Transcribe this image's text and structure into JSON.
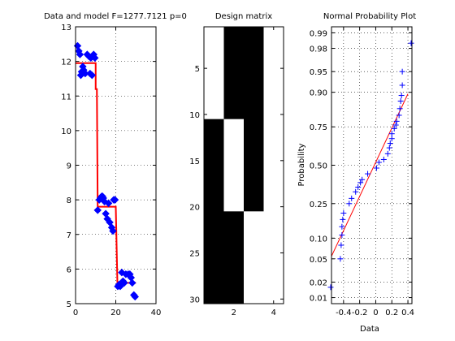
{
  "chart_data": [
    {
      "type": "scatter",
      "title": "Data and model F=1277.7121 p=0",
      "xlabel": "",
      "ylabel": "",
      "xlim": [
        0,
        40
      ],
      "ylim": [
        5,
        13
      ],
      "x_ticks": [
        0,
        20,
        40
      ],
      "y_ticks": [
        5,
        6,
        7,
        8,
        9,
        10,
        11,
        12,
        13
      ],
      "grid": true,
      "colors": {
        "data": "#0000ff",
        "model": "#ff0000"
      },
      "series": [
        {
          "kind": "markers",
          "marker": "filled-diamond",
          "points": [
            [
              1,
              12.45
            ],
            [
              1.6,
              12.3
            ],
            [
              2.2,
              12.2
            ],
            [
              2.6,
              11.6
            ],
            [
              3,
              11.7
            ],
            [
              3.6,
              11.85
            ],
            [
              4,
              11.75
            ],
            [
              4.8,
              11.65
            ],
            [
              5.8,
              12.2
            ],
            [
              6.6,
              12.15
            ],
            [
              7.2,
              11.65
            ],
            [
              7.6,
              12.1
            ],
            [
              8.2,
              11.6
            ],
            [
              9,
              12.2
            ],
            [
              9.6,
              12.1
            ],
            [
              11,
              7.7
            ],
            [
              11.8,
              8.0
            ],
            [
              12.4,
              8.05
            ],
            [
              13,
              8.1
            ],
            [
              13.4,
              8.1
            ],
            [
              13.8,
              8.05
            ],
            [
              14.4,
              7.95
            ],
            [
              15,
              7.6
            ],
            [
              15.8,
              7.45
            ],
            [
              16.4,
              7.9
            ],
            [
              17,
              7.35
            ],
            [
              18,
              7.2
            ],
            [
              18.6,
              7.1
            ],
            [
              19,
              8.0
            ],
            [
              19.6,
              8.0
            ],
            [
              21,
              5.5
            ],
            [
              21.6,
              5.55
            ],
            [
              22.2,
              5.5
            ],
            [
              23,
              5.9
            ],
            [
              23.6,
              5.65
            ],
            [
              24.2,
              5.6
            ],
            [
              25,
              5.85
            ],
            [
              26.2,
              5.85
            ],
            [
              27,
              5.85
            ],
            [
              27.6,
              5.75
            ],
            [
              28.2,
              5.6
            ],
            [
              29,
              5.25
            ],
            [
              29.6,
              5.2
            ]
          ]
        },
        {
          "kind": "step-line",
          "points": [
            [
              0,
              11.95
            ],
            [
              10,
              11.95
            ],
            [
              10,
              11.2
            ],
            [
              10.6,
              11.2
            ],
            [
              11,
              7.8
            ],
            [
              20,
              7.8
            ],
            [
              20,
              7.8
            ],
            [
              20.8,
              5.6
            ],
            [
              30,
              5.6
            ]
          ]
        }
      ]
    },
    {
      "type": "heatmap",
      "title": "Design matrix",
      "xlabel": "",
      "ylabel": "",
      "xlim": [
        0.5,
        4.5
      ],
      "ylim": [
        30.5,
        0.5
      ],
      "x_ticks": [
        2,
        4
      ],
      "y_ticks": [
        5,
        10,
        15,
        20,
        25,
        30
      ],
      "grid": false,
      "colors": {
        "one": "#ffffff",
        "zero": "#000000"
      },
      "columns": [
        {
          "col": 1,
          "ones_rows": [
            1,
            10
          ]
        },
        {
          "col": 2,
          "ones_rows": [
            11,
            20
          ]
        },
        {
          "col": 3,
          "ones_rows": [
            21,
            30
          ]
        },
        {
          "col": 4,
          "ones_rows": [
            1,
            30
          ]
        }
      ]
    },
    {
      "type": "scatter",
      "title": "Normal Probability Plot",
      "xlabel": "Data",
      "ylabel": "Probability",
      "xlim": [
        -0.55,
        0.45
      ],
      "x_ticks": [
        -0.4,
        -0.2,
        0,
        0.2,
        0.4
      ],
      "x_tick_labels": [
        "-0.4",
        "-0.2",
        "0",
        "0.2",
        "0.4"
      ],
      "y_scale": "normal-probability",
      "y_ticks": [
        0.01,
        0.02,
        0.05,
        0.1,
        0.25,
        0.5,
        0.75,
        0.9,
        0.95,
        0.98,
        0.99
      ],
      "y_tick_labels": [
        "0.01",
        "0.02",
        "0.05",
        "0.10",
        "0.25",
        "0.50",
        "0.75",
        "0.90",
        "0.95",
        "0.98",
        "0.99"
      ],
      "grid": true,
      "colors": {
        "data": "#0000ff",
        "fit": "#ff0000"
      },
      "series": [
        {
          "kind": "markers",
          "marker": "plus",
          "points": [
            [
              -0.56,
              0.016
            ],
            [
              -0.44,
              0.05
            ],
            [
              -0.43,
              0.08
            ],
            [
              -0.42,
              0.11
            ],
            [
              -0.42,
              0.14
            ],
            [
              -0.41,
              0.17
            ],
            [
              -0.4,
              0.2
            ],
            [
              -0.33,
              0.25
            ],
            [
              -0.3,
              0.28
            ],
            [
              -0.25,
              0.32
            ],
            [
              -0.22,
              0.35
            ],
            [
              -0.19,
              0.38
            ],
            [
              -0.17,
              0.4
            ],
            [
              -0.1,
              0.44
            ],
            [
              0.01,
              0.48
            ],
            [
              0.04,
              0.52
            ],
            [
              0.1,
              0.54
            ],
            [
              0.15,
              0.58
            ],
            [
              0.17,
              0.62
            ],
            [
              0.18,
              0.65
            ],
            [
              0.2,
              0.68
            ],
            [
              0.2,
              0.71
            ],
            [
              0.23,
              0.74
            ],
            [
              0.25,
              0.76
            ],
            [
              0.26,
              0.78
            ],
            [
              0.29,
              0.81
            ],
            [
              0.3,
              0.84
            ],
            [
              0.31,
              0.87
            ],
            [
              0.32,
              0.89
            ],
            [
              0.33,
              0.92
            ],
            [
              0.33,
              0.95
            ],
            [
              0.44,
              0.984
            ]
          ]
        },
        {
          "kind": "fit-line",
          "points": [
            [
              -0.55,
              0.055
            ],
            [
              0.4,
              0.895
            ]
          ]
        }
      ]
    }
  ]
}
